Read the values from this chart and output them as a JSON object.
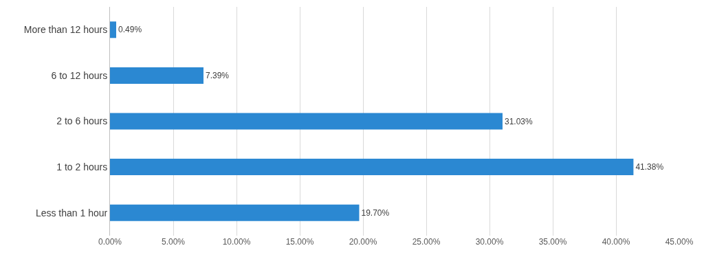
{
  "chart_data": {
    "type": "bar",
    "orientation": "horizontal",
    "categories": [
      "More than 12 hours",
      "6 to 12 hours",
      "2 to 6 hours",
      "1 to 2 hours",
      "Less than 1 hour"
    ],
    "values": [
      0.49,
      7.39,
      31.03,
      41.38,
      19.7
    ],
    "value_labels": [
      "0.49%",
      "7.39%",
      "31.03%",
      "41.38%",
      "19.70%"
    ],
    "color": "#2b88d2",
    "xlim": [
      0,
      45
    ],
    "xticks": [
      {
        "value": 0,
        "label": "0.00%"
      },
      {
        "value": 5,
        "label": "5.00%"
      },
      {
        "value": 10,
        "label": "10.00%"
      },
      {
        "value": 15,
        "label": "15.00%"
      },
      {
        "value": 20,
        "label": "20.00%"
      },
      {
        "value": 25,
        "label": "25.00%"
      },
      {
        "value": 30,
        "label": "30.00%"
      },
      {
        "value": 35,
        "label": "35.00%"
      },
      {
        "value": 40,
        "label": "40.00%"
      },
      {
        "value": 45,
        "label": "45.00%"
      }
    ],
    "grid": "x"
  }
}
